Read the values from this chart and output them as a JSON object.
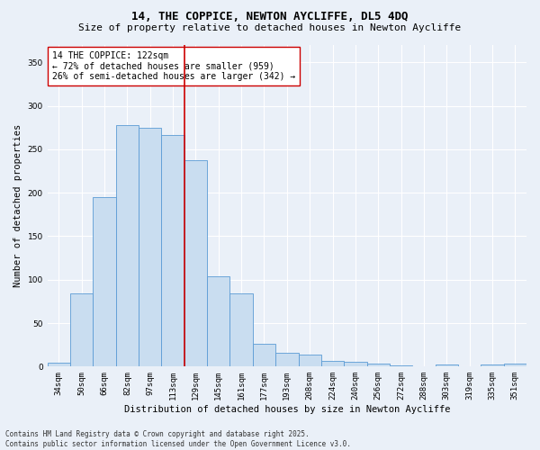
{
  "title_line1": "14, THE COPPICE, NEWTON AYCLIFFE, DL5 4DQ",
  "title_line2": "Size of property relative to detached houses in Newton Aycliffe",
  "xlabel": "Distribution of detached houses by size in Newton Aycliffe",
  "ylabel": "Number of detached properties",
  "categories": [
    "34sqm",
    "50sqm",
    "66sqm",
    "82sqm",
    "97sqm",
    "113sqm",
    "129sqm",
    "145sqm",
    "161sqm",
    "177sqm",
    "193sqm",
    "208sqm",
    "224sqm",
    "240sqm",
    "256sqm",
    "272sqm",
    "288sqm",
    "303sqm",
    "319sqm",
    "335sqm",
    "351sqm"
  ],
  "values": [
    5,
    84,
    195,
    278,
    275,
    266,
    237,
    104,
    84,
    26,
    16,
    14,
    7,
    6,
    3,
    1,
    0,
    2,
    0,
    2,
    3
  ],
  "bar_color": "#c9ddf0",
  "bar_edge_color": "#5b9bd5",
  "vline_pos": 5.5,
  "vline_color": "#cc0000",
  "annotation_text": "14 THE COPPICE: 122sqm\n← 72% of detached houses are smaller (959)\n26% of semi-detached houses are larger (342) →",
  "annotation_box_color": "#ffffff",
  "annotation_box_edge": "#cc0000",
  "ylim": [
    0,
    370
  ],
  "yticks": [
    0,
    50,
    100,
    150,
    200,
    250,
    300,
    350
  ],
  "background_color": "#eaf0f8",
  "plot_background": "#eaf0f8",
  "footer_text": "Contains HM Land Registry data © Crown copyright and database right 2025.\nContains public sector information licensed under the Open Government Licence v3.0.",
  "title_fontsize": 9,
  "subtitle_fontsize": 8,
  "xlabel_fontsize": 7.5,
  "ylabel_fontsize": 7.5,
  "tick_fontsize": 6.5,
  "annotation_fontsize": 7,
  "footer_fontsize": 5.5
}
